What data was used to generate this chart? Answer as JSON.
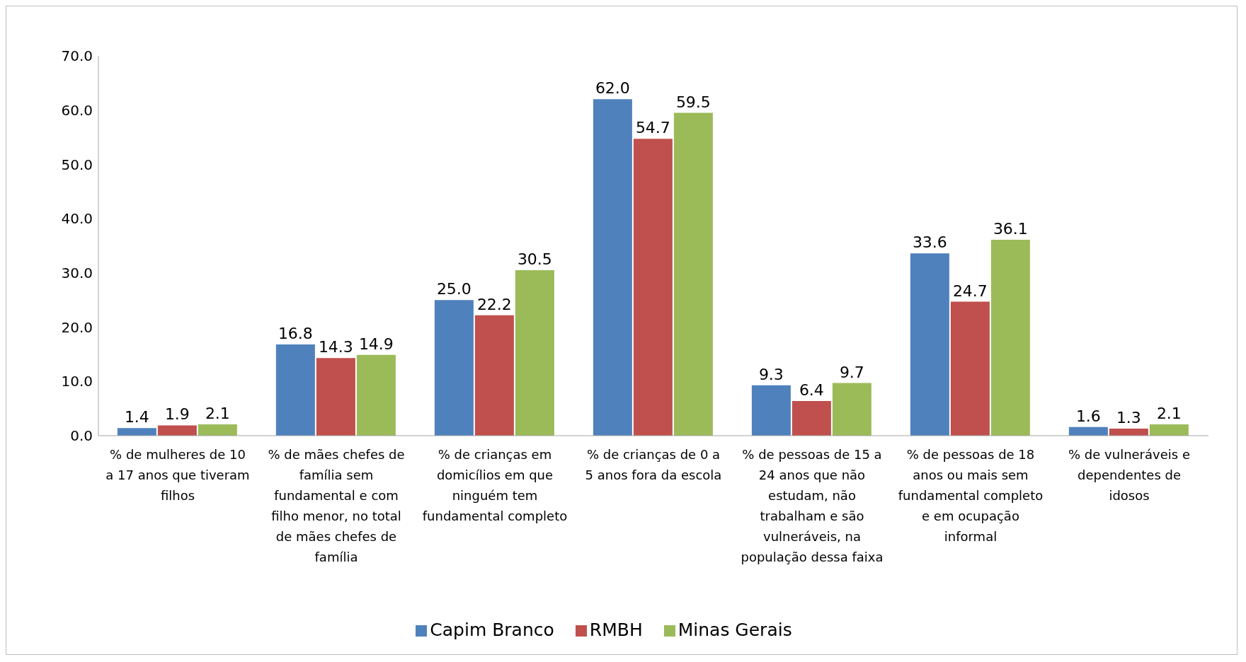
{
  "chart_data": {
    "type": "bar",
    "categories": [
      "% de mulheres de 10 a 17 anos que tiveram filhos",
      "% de mães chefes de família sem fundamental e com filho menor, no total de mães chefes de família",
      "% de crianças em domicílios em que ninguém tem fundamental completo",
      "% de crianças de 0 a 5 anos fora da escola",
      "% de pessoas de 15 a 24 anos que não estudam, não trabalham e são vulneráveis, na população dessa faixa",
      "% de pessoas de 18 anos ou mais sem fundamental completo e em ocupação informal",
      "% de vulneráveis e dependentes de idosos"
    ],
    "series": [
      {
        "name": "Capim Branco",
        "color": "#4f81bd",
        "values": [
          1.4,
          16.8,
          25.0,
          62.0,
          9.3,
          33.6,
          1.6
        ],
        "value_labels": [
          "1.4",
          "16.8",
          "25.0",
          "62.0",
          "9.3",
          "33.6",
          "1.6"
        ]
      },
      {
        "name": "RMBH",
        "color": "#c0504d",
        "values": [
          1.9,
          14.3,
          22.2,
          54.7,
          6.4,
          24.7,
          1.3
        ],
        "value_labels": [
          "1.9",
          "14.3",
          "22.2",
          "54.7",
          "6.4",
          "24.7",
          "1.3"
        ]
      },
      {
        "name": "Minas Gerais",
        "color": "#9bbb59",
        "values": [
          2.1,
          14.9,
          30.5,
          59.5,
          9.7,
          36.1,
          2.1
        ],
        "value_labels": [
          "2.1",
          "14.9",
          "30.5",
          "59.5",
          "9.7",
          "36.1",
          "2.1"
        ]
      }
    ],
    "ylim": [
      0,
      70
    ],
    "yticks": [
      {
        "value": 0,
        "label": "0.0"
      },
      {
        "value": 10,
        "label": "10.0"
      },
      {
        "value": 20,
        "label": "20.0"
      },
      {
        "value": 30,
        "label": "30.0"
      },
      {
        "value": 40,
        "label": "40.0"
      },
      {
        "value": 50,
        "label": "50.0"
      },
      {
        "value": 60,
        "label": "60.0"
      },
      {
        "value": 70,
        "label": "70.0"
      }
    ],
    "grid": false,
    "legend": "bottom"
  }
}
